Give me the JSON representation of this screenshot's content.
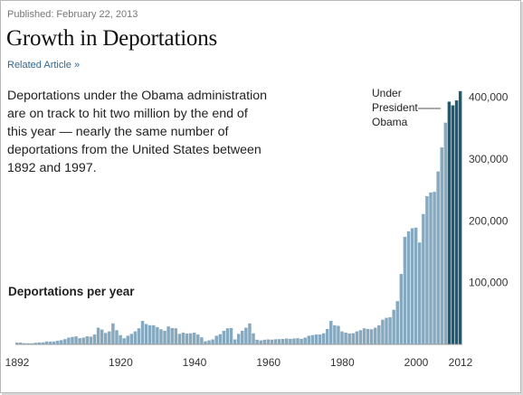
{
  "header": {
    "published": "Published: February 22, 2013",
    "title": "Growth in Deportations",
    "related": "Related Article »"
  },
  "description": "Deportations under the Obama administration are on track to hit two million by the end of this year — nearly the same number of deportations from the United States between 1892 and 1997.",
  "colors": {
    "bar": "#86a9bf",
    "obama_bar": "#1f5a73",
    "text": "#333333"
  },
  "chart_data": {
    "type": "bar",
    "series_label": "Deportations per year",
    "annotation": "Under President Obama",
    "x_start": 1892,
    "x_end": 2012,
    "x_ticks": [
      "1892",
      "1920",
      "1940",
      "1960",
      "1980",
      "2000",
      "2012"
    ],
    "y_ticks": [
      "100,000",
      "200,000",
      "300,000",
      "400,000"
    ],
    "y_tick_values": [
      100000,
      200000,
      300000,
      400000
    ],
    "ylim": [
      0,
      420000
    ],
    "highlight_from_year": 2009,
    "values": [
      2800,
      3000,
      1900,
      1800,
      1800,
      2600,
      3100,
      3300,
      4800,
      4400,
      4700,
      5900,
      6800,
      8500,
      11000,
      12000,
      13000,
      10000,
      11000,
      13000,
      12500,
      16000,
      27000,
      24000,
      18500,
      21000,
      34000,
      23000,
      15000,
      10000,
      14000,
      17000,
      21000,
      26000,
      38000,
      33000,
      31000,
      31000,
      28000,
      24500,
      22000,
      29000,
      26500,
      26000,
      17000,
      19000,
      17500,
      18000,
      19000,
      16000,
      11500,
      5000,
      6500,
      8000,
      14000,
      16500,
      22000,
      26000,
      26500,
      8000,
      17000,
      22000,
      27000,
      34000,
      18000,
      7500,
      6500,
      7500,
      8000,
      7700,
      8300,
      8500,
      8800,
      9500,
      9000,
      9500,
      10000,
      9000,
      11000,
      14000,
      15000,
      16000,
      16000,
      18000,
      25000,
      38000,
      31000,
      30000,
      21000,
      19000,
      17500,
      18000,
      21000,
      23000,
      26000,
      25000,
      24500,
      27000,
      31000,
      40000,
      43000,
      44000,
      56000,
      70000,
      114000,
      174000,
      183000,
      188000,
      189000,
      165000,
      211000,
      240000,
      246000,
      247000,
      280000,
      319000,
      359000,
      393000,
      387000,
      395000,
      410000
    ]
  }
}
